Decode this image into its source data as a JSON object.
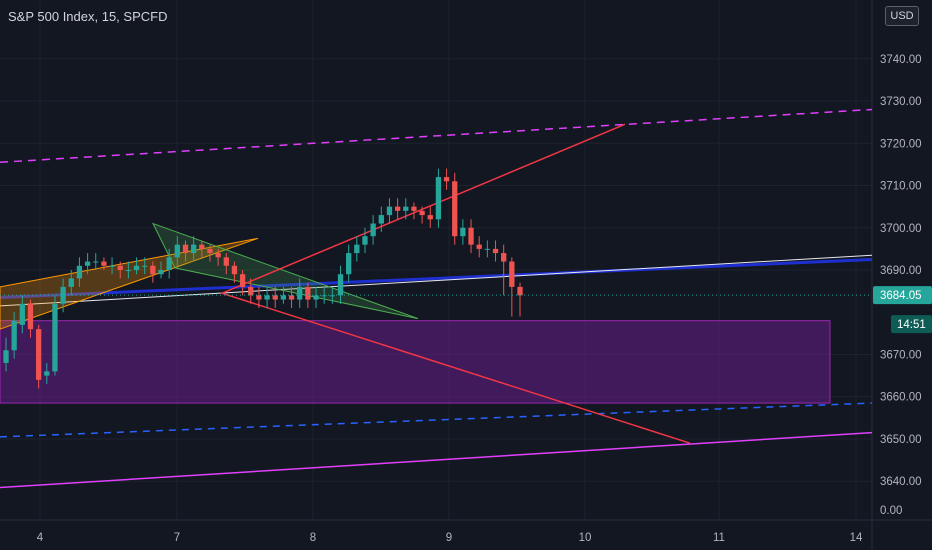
{
  "header": {
    "title": "S&P 500 Index, 15, SPCFD",
    "currency_button": "USD"
  },
  "price_axis": {
    "ticks": [
      "3740.00",
      "3730.00",
      "3720.00",
      "3710.00",
      "3700.00",
      "3690.00",
      "3670.00",
      "3660.00",
      "3650.00",
      "3640.00",
      "0.00"
    ],
    "last_price": "3684.05",
    "countdown": "14:51"
  },
  "colors": {
    "background": "#131722",
    "up": "#26a69a",
    "down": "#ef5350",
    "zone": "#7b1fa2",
    "magenta_line": "#e040fb",
    "blue_line": "#2962ff",
    "red_channel": "#f23645",
    "green_triangle": "#4caf50",
    "orange_wedge": "#ff9800"
  },
  "chart_data": {
    "type": "candlestick",
    "title": "S&P 500 Index, 15, SPCFD",
    "x_tick_labels": [
      "4",
      "7",
      "8",
      "9",
      "10",
      "11",
      "14"
    ],
    "ylim": [
      3632,
      3748
    ],
    "y_ticks": [
      3740,
      3730,
      3720,
      3710,
      3700,
      3690,
      3670,
      3660,
      3650,
      3640
    ],
    "last_price": 3684.05,
    "series": [
      {
        "close": [
          3671,
          3678,
          3682,
          3676,
          3664,
          3666,
          3682,
          3686,
          3688,
          3691,
          3692,
          3692,
          3691,
          3691,
          3690,
          3690,
          3691,
          3691,
          3689,
          3690,
          3693,
          3696,
          3694,
          3696,
          3695,
          3694,
          3693,
          3691,
          3689,
          3686,
          3684,
          3683,
          3684,
          3683,
          3684,
          3683,
          3686,
          3683,
          3684,
          3684,
          3684,
          3689,
          3694,
          3696,
          3698,
          3701,
          3703,
          3705,
          3704,
          3705,
          3704,
          3703,
          3702,
          3712,
          3711,
          3698,
          3700,
          3696,
          3695,
          3695,
          3694,
          3692,
          3686,
          3684
        ],
        "open": [
          3668,
          3671,
          3677,
          3682,
          3676,
          3665,
          3666,
          3682,
          3686,
          3688,
          3691,
          3692,
          3692,
          3691,
          3691,
          3690,
          3690,
          3691,
          3691,
          3689,
          3690,
          3693,
          3696,
          3694,
          3696,
          3695,
          3694,
          3693,
          3691,
          3689,
          3686,
          3684,
          3683,
          3684,
          3683,
          3684,
          3683,
          3686,
          3683,
          3684,
          3684,
          3684,
          3689,
          3694,
          3696,
          3698,
          3701,
          3703,
          3705,
          3704,
          3705,
          3704,
          3703,
          3702,
          3712,
          3711,
          3698,
          3700,
          3696,
          3695,
          3695,
          3694,
          3692,
          3686
        ],
        "high": [
          3674,
          3680,
          3684,
          3683,
          3677,
          3668,
          3684,
          3688,
          3690,
          3693,
          3694,
          3694,
          3693,
          3693,
          3692,
          3692,
          3693,
          3693,
          3692,
          3692,
          3695,
          3698,
          3697,
          3698,
          3697,
          3696,
          3695,
          3694,
          3692,
          3690,
          3688,
          3686,
          3686,
          3686,
          3686,
          3686,
          3688,
          3687,
          3686,
          3686,
          3686,
          3691,
          3696,
          3698,
          3700,
          3703,
          3705,
          3707,
          3707,
          3707,
          3706,
          3705,
          3705,
          3714,
          3714,
          3713,
          3702,
          3702,
          3698,
          3697,
          3697,
          3696,
          3693,
          3687
        ],
        "low": [
          3666,
          3669,
          3675,
          3674,
          3662,
          3663,
          3665,
          3680,
          3684,
          3686,
          3689,
          3690,
          3690,
          3689,
          3688,
          3688,
          3689,
          3689,
          3687,
          3688,
          3688,
          3691,
          3692,
          3692,
          3693,
          3692,
          3691,
          3689,
          3687,
          3684,
          3682,
          3681,
          3681,
          3681,
          3682,
          3681,
          3681,
          3681,
          3681,
          3682,
          3682,
          3682,
          3687,
          3692,
          3694,
          3696,
          3699,
          3701,
          3702,
          3702,
          3702,
          3701,
          3700,
          3700,
          3709,
          3696,
          3696,
          3694,
          3693,
          3693,
          3692,
          3684,
          3679,
          3679
        ]
      }
    ]
  }
}
